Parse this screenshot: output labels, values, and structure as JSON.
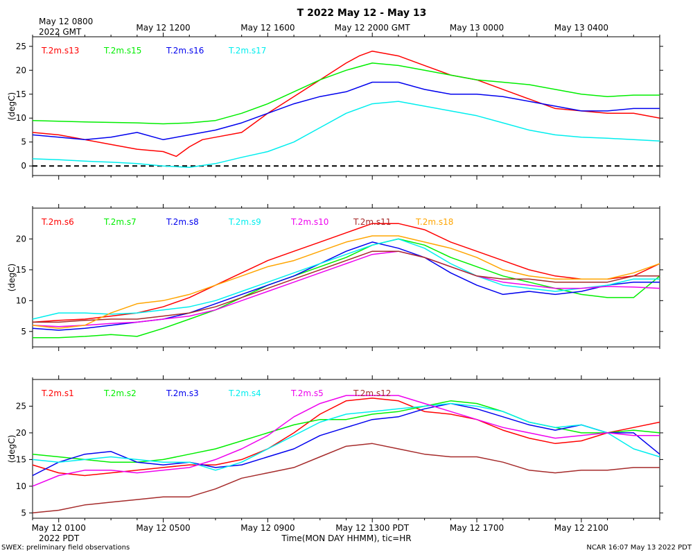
{
  "title": "T 2022 May 12 - May 13",
  "top_axis": {
    "label_line1": "May 12 0800",
    "label_line2": "2022 GMT",
    "ticks": [
      "May 12 1200",
      "May 12 1600",
      "May 12 2000 GMT",
      "May 13 0000",
      "May 13 0400"
    ]
  },
  "bottom_axis": {
    "ticks": [
      "May 12 0100",
      "May 12 0500",
      "May 12 0900",
      "May 12 1300 PDT",
      "May 12 1700",
      "May 12 2100"
    ],
    "year_label": "2022 PDT",
    "xlabel": "Time(MON DAY HHMM), tic=HR"
  },
  "footer": {
    "left": "SWEX: preliminary field observations",
    "right": "NCAR 16:07 May 13 2022 PDT"
  },
  "chart_data": [
    {
      "type": "line",
      "ylabel": "(degC)",
      "x_unit": "hours since May 12 0000 PDT",
      "xlim": [
        0,
        24
      ],
      "ylim": [
        -2,
        27
      ],
      "yticks": [
        "0",
        "5",
        "10",
        "15",
        "20",
        "25"
      ],
      "ytick_values": [
        0,
        5,
        10,
        15,
        20,
        25
      ],
      "reference_line": {
        "y": 0,
        "style": "dashed"
      },
      "series": [
        {
          "name": "T.2m.s13",
          "color": "#ff0000",
          "x": [
            0,
            1,
            2,
            3,
            4,
            5,
            5.5,
            6,
            6.5,
            7,
            8,
            9,
            10,
            11,
            12,
            12.5,
            13,
            14,
            15,
            16,
            17,
            18,
            19,
            20,
            21,
            22,
            23,
            24
          ],
          "y": [
            7,
            6.5,
            5.5,
            4.5,
            3.5,
            3,
            2,
            4,
            5.5,
            6,
            7,
            11,
            14.5,
            18,
            21.5,
            23,
            24,
            23,
            21,
            19,
            18,
            16,
            14,
            12,
            11.5,
            11,
            11,
            10
          ]
        },
        {
          "name": "T.2m.s15",
          "color": "#00ee00",
          "x": [
            0,
            2,
            4,
            5,
            6,
            7,
            8,
            9,
            10,
            11,
            12,
            13,
            14,
            15,
            16,
            17,
            18,
            19,
            20,
            21,
            22,
            23,
            24
          ],
          "y": [
            9.5,
            9.2,
            9.0,
            8.8,
            9.0,
            9.5,
            11,
            13,
            15.5,
            18,
            20,
            21.5,
            21,
            20,
            19,
            18,
            17.5,
            17,
            16,
            15,
            14.5,
            14.8,
            14.8
          ]
        },
        {
          "name": "T.2m.s16",
          "color": "#0000ee",
          "x": [
            0,
            1,
            2,
            3,
            4,
            5,
            6,
            7,
            8,
            9,
            10,
            11,
            12,
            13,
            14,
            15,
            16,
            17,
            18,
            19,
            20,
            21,
            22,
            23,
            24
          ],
          "y": [
            6.5,
            6,
            5.5,
            6,
            7,
            5.5,
            6.5,
            7.5,
            9,
            11,
            13,
            14.5,
            15.5,
            17.5,
            17.5,
            16,
            15,
            15,
            14.5,
            13.5,
            12.5,
            11.5,
            11.5,
            12,
            12
          ]
        },
        {
          "name": "T.2m.s17",
          "color": "#00eeee",
          "x": [
            0,
            1,
            2,
            3,
            4,
            5,
            6,
            7,
            8,
            9,
            10,
            11,
            12,
            13,
            14,
            15,
            16,
            17,
            18,
            19,
            20,
            21,
            22,
            23,
            24
          ],
          "y": [
            1.5,
            1.3,
            1.0,
            0.8,
            0.5,
            0,
            -0.3,
            0.5,
            1.8,
            3,
            5,
            8,
            11,
            13,
            13.5,
            12.5,
            11.5,
            10.5,
            9,
            7.5,
            6.5,
            6,
            5.8,
            5.5,
            5.2
          ]
        }
      ]
    },
    {
      "type": "line",
      "ylabel": "(degC)",
      "x_unit": "hours since May 12 0000 PDT",
      "xlim": [
        0,
        24
      ],
      "ylim": [
        2.5,
        25
      ],
      "yticks": [
        "5",
        "10",
        "15",
        "20"
      ],
      "ytick_values": [
        5,
        10,
        15,
        20
      ],
      "series": [
        {
          "name": "T.2m.s6",
          "color": "#ff0000",
          "x": [
            0,
            1,
            2,
            3,
            4,
            5,
            6,
            7,
            8,
            9,
            10,
            11,
            12,
            13,
            14,
            15,
            16,
            17,
            18,
            19,
            20,
            21,
            22,
            23,
            24
          ],
          "y": [
            6.5,
            6.8,
            7,
            7.5,
            8,
            9,
            10.5,
            12.5,
            14.5,
            16.5,
            18,
            19.5,
            21,
            22.5,
            22.5,
            21.5,
            19.5,
            18,
            16.5,
            15,
            14,
            13.5,
            13.5,
            14,
            16
          ]
        },
        {
          "name": "T.2m.s7",
          "color": "#00ee00",
          "x": [
            0,
            1,
            2,
            3,
            4,
            5,
            6,
            7,
            8,
            9,
            10,
            11,
            12,
            13,
            14,
            15,
            16,
            17,
            18,
            19,
            20,
            21,
            22,
            23,
            24
          ],
          "y": [
            4,
            4,
            4.2,
            4.5,
            4.2,
            5.5,
            7,
            8.5,
            10.5,
            12.5,
            14,
            15.5,
            17,
            19,
            20,
            19,
            17,
            15.5,
            14,
            13,
            12,
            11,
            10.5,
            10.5,
            14
          ]
        },
        {
          "name": "T.2m.s8",
          "color": "#0000ee",
          "x": [
            0,
            1,
            2,
            3,
            4,
            5,
            6,
            7,
            8,
            9,
            10,
            11,
            12,
            13,
            14,
            15,
            16,
            17,
            18,
            19,
            20,
            21,
            22,
            23,
            24
          ],
          "y": [
            5.5,
            5.2,
            5.5,
            6,
            6.5,
            7,
            8,
            9.5,
            11,
            12.5,
            14,
            16,
            18,
            19.5,
            18.5,
            17,
            14.5,
            12.5,
            11,
            11.5,
            11,
            11.5,
            12.5,
            13,
            13
          ]
        },
        {
          "name": "T.2m.s9",
          "color": "#00eeee",
          "x": [
            0,
            1,
            2,
            3,
            4,
            5,
            6,
            7,
            8,
            9,
            10,
            11,
            12,
            13,
            14,
            15,
            16,
            17,
            18,
            19,
            20,
            21,
            22,
            23,
            24
          ],
          "y": [
            7,
            8,
            8,
            7.8,
            8,
            8.5,
            9,
            10,
            11.5,
            13,
            14.5,
            16,
            17.5,
            19,
            20,
            18.5,
            16,
            14,
            12.5,
            12,
            11.5,
            12,
            12.5,
            13.5,
            13.5
          ]
        },
        {
          "name": "T.2m.s10",
          "color": "#ee00ee",
          "x": [
            0,
            1,
            2,
            3,
            4,
            5,
            6,
            7,
            8,
            9,
            10,
            11,
            12,
            13,
            14,
            15,
            16,
            17,
            18,
            19,
            20,
            21,
            22,
            23,
            24
          ],
          "y": [
            6,
            5.8,
            6,
            6.3,
            6.5,
            7,
            7.5,
            8.5,
            10,
            11.5,
            13,
            14.5,
            16,
            17.5,
            18,
            17,
            15.5,
            14,
            13,
            12.5,
            12,
            12,
            12.3,
            12.2,
            12
          ]
        },
        {
          "name": "T.2m.s11",
          "color": "#a52a2a",
          "x": [
            0,
            1,
            2,
            3,
            4,
            5,
            6,
            7,
            8,
            9,
            10,
            11,
            12,
            13,
            14,
            15,
            16,
            17,
            18,
            19,
            20,
            21,
            22,
            23,
            24
          ],
          "y": [
            6.5,
            6.5,
            6.8,
            7,
            7,
            7.5,
            8,
            9,
            10.5,
            12,
            13.5,
            15,
            16.5,
            18,
            18,
            17,
            15.5,
            14,
            13.5,
            13.5,
            13,
            13,
            13,
            14,
            14
          ]
        },
        {
          "name": "T.2m.s18",
          "color": "#ffa500",
          "x": [
            0,
            1,
            2,
            3,
            4,
            5,
            6,
            7,
            8,
            9,
            10,
            11,
            12,
            13,
            14,
            15,
            16,
            17,
            18,
            19,
            20,
            21,
            22,
            23,
            24
          ],
          "y": [
            6,
            5.5,
            6,
            8,
            9.5,
            10,
            11,
            12.5,
            14,
            15.5,
            16.5,
            18,
            19.5,
            20.5,
            20.5,
            19.5,
            18.5,
            17,
            15,
            14,
            13.5,
            13.5,
            13.5,
            14.5,
            16
          ]
        }
      ]
    },
    {
      "type": "line",
      "ylabel": "(degC)",
      "x_unit": "hours since May 12 0000 PDT",
      "xlim": [
        0,
        24
      ],
      "ylim": [
        4,
        30
      ],
      "yticks": [
        "5",
        "10",
        "15",
        "20",
        "25"
      ],
      "ytick_values": [
        5,
        10,
        15,
        20,
        25
      ],
      "series": [
        {
          "name": "T.2m.s1",
          "color": "#ff0000",
          "x": [
            0,
            1,
            2,
            3,
            4,
            5,
            6,
            7,
            8,
            9,
            10,
            11,
            12,
            13,
            14,
            15,
            16,
            17,
            18,
            19,
            20,
            21,
            22,
            23,
            24
          ],
          "y": [
            14,
            12.5,
            12,
            12.5,
            13,
            13.5,
            14,
            14,
            15,
            17,
            20,
            23.5,
            26,
            26.5,
            26,
            24,
            23.5,
            22.5,
            20.5,
            19,
            18,
            18.5,
            20,
            21,
            22
          ]
        },
        {
          "name": "T.2m.s2",
          "color": "#00ee00",
          "x": [
            0,
            1,
            2,
            3,
            4,
            5,
            6,
            7,
            8,
            9,
            10,
            11,
            12,
            13,
            14,
            15,
            16,
            17,
            18,
            19,
            20,
            21,
            22,
            23,
            24
          ],
          "y": [
            16,
            15.5,
            15,
            14.5,
            14.5,
            15,
            16,
            17,
            18.5,
            20,
            21.5,
            22.5,
            22.5,
            23.5,
            24,
            25,
            26,
            25.5,
            24,
            22,
            21,
            20,
            20,
            20.5,
            20
          ]
        },
        {
          "name": "T.2m.s3",
          "color": "#0000ee",
          "x": [
            0,
            1,
            2,
            3,
            4,
            5,
            6,
            7,
            8,
            9,
            10,
            11,
            12,
            13,
            14,
            15,
            16,
            17,
            18,
            19,
            20,
            21,
            22,
            23,
            24
          ],
          "y": [
            12,
            14.5,
            16,
            16.5,
            14.5,
            14,
            14.5,
            13.5,
            14,
            15.5,
            17,
            19.5,
            21,
            22.5,
            23,
            24.5,
            25.5,
            24.5,
            23,
            21.5,
            20.5,
            21.5,
            20,
            20,
            16
          ]
        },
        {
          "name": "T.2m.s4",
          "color": "#00eeee",
          "x": [
            0,
            1,
            2,
            3,
            4,
            5,
            6,
            7,
            8,
            9,
            10,
            11,
            12,
            13,
            14,
            15,
            16,
            17,
            18,
            19,
            20,
            21,
            22,
            23,
            24
          ],
          "y": [
            15,
            14.5,
            15,
            15.5,
            15,
            14.5,
            14.5,
            13,
            14.5,
            17,
            19.5,
            22,
            23.5,
            24,
            24.5,
            25,
            25.5,
            25,
            24,
            22,
            21,
            21.5,
            20,
            17,
            15.5
          ]
        },
        {
          "name": "T.2m.s5",
          "color": "#ee00ee",
          "x": [
            0,
            1,
            2,
            3,
            4,
            5,
            6,
            7,
            8,
            9,
            10,
            11,
            12,
            13,
            14,
            15,
            16,
            17,
            18,
            19,
            20,
            21,
            22,
            23,
            24
          ],
          "y": [
            10,
            12,
            13,
            13,
            12.5,
            13,
            13.5,
            15,
            17,
            19.5,
            23,
            25.5,
            27,
            27,
            27,
            25.5,
            24,
            22.5,
            21,
            20,
            19,
            19.5,
            20,
            19.5,
            19.5
          ]
        },
        {
          "name": "T.2m.s12",
          "color": "#a52a2a",
          "x": [
            0,
            1,
            2,
            3,
            4,
            5,
            6,
            7,
            8,
            9,
            10,
            11,
            12,
            13,
            14,
            15,
            16,
            17,
            18,
            19,
            20,
            21,
            22,
            23,
            24
          ],
          "y": [
            5,
            5.5,
            6.5,
            7,
            7.5,
            8,
            8,
            9.5,
            11.5,
            12.5,
            13.5,
            15.5,
            17.5,
            18,
            17,
            16,
            15.5,
            15.5,
            14.5,
            13,
            12.5,
            13,
            13,
            13.5,
            13.5
          ]
        }
      ]
    }
  ]
}
